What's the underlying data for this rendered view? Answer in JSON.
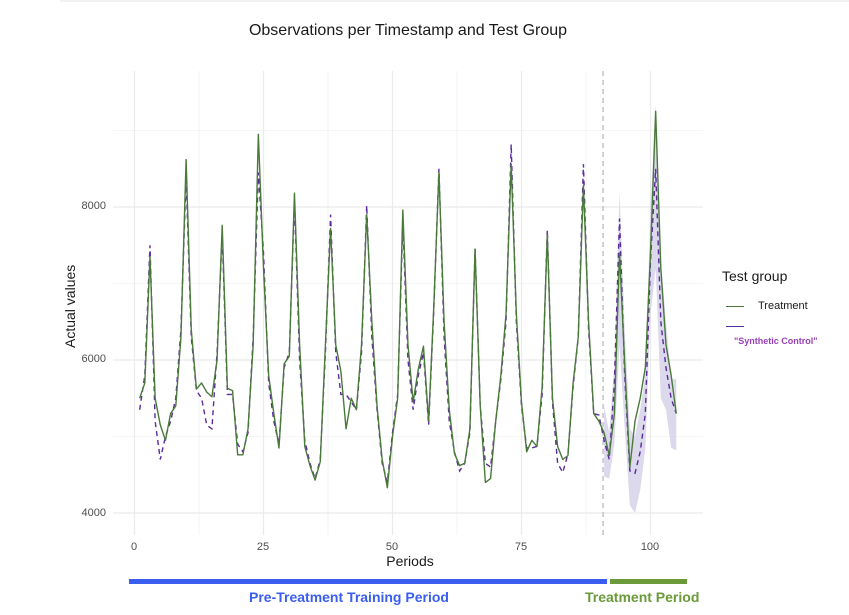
{
  "colors": {
    "treatment": "#4a7a3a",
    "synthetic_control": "#5b2a9e",
    "band": "#d8d5ea",
    "grid": "#ebebeb",
    "vline": "#b5b5b5",
    "pre_period": "#3a5ef0",
    "treatment_period": "#6a9a3a",
    "legend_sc_label": "#9a3fb8"
  },
  "chart_data": {
    "type": "line",
    "title": "Observations per Timestamp and Test Group",
    "xlabel": "Periods",
    "ylabel": "Actual values",
    "xlim": [
      -4,
      110
    ],
    "ylim": [
      3700,
      9750
    ],
    "xticks": [
      0,
      25,
      50,
      75,
      100
    ],
    "yticks": [
      4000,
      6000,
      8000
    ],
    "grid": true,
    "treatment_start": 91,
    "legend": {
      "title": "Test group",
      "position": "right",
      "entries": [
        "Treatment",
        "\"Synthetic Control\""
      ]
    },
    "x": [
      1,
      2,
      3,
      4,
      5,
      6,
      7,
      8,
      9,
      10,
      11,
      12,
      13,
      14,
      15,
      16,
      17,
      18,
      19,
      20,
      21,
      22,
      23,
      24,
      25,
      26,
      27,
      28,
      29,
      30,
      31,
      32,
      33,
      34,
      35,
      36,
      37,
      38,
      39,
      40,
      41,
      42,
      43,
      44,
      45,
      46,
      47,
      48,
      49,
      50,
      51,
      52,
      53,
      54,
      55,
      56,
      57,
      58,
      59,
      60,
      61,
      62,
      63,
      64,
      65,
      66,
      67,
      68,
      69,
      70,
      71,
      72,
      73,
      74,
      75,
      76,
      77,
      78,
      79,
      80,
      81,
      82,
      83,
      84,
      85,
      86,
      87,
      88,
      89,
      90,
      91,
      92,
      93,
      94,
      95,
      96,
      97,
      98,
      99,
      100,
      101,
      102,
      103,
      104,
      105
    ],
    "series": [
      {
        "name": "Treatment",
        "style": "solid",
        "values": [
          5500,
          5700,
          7350,
          5500,
          5150,
          4950,
          5300,
          5400,
          6300,
          8620,
          6400,
          5620,
          5700,
          5580,
          5520,
          6000,
          7760,
          5630,
          5600,
          4760,
          4760,
          5100,
          6200,
          8950,
          7200,
          5800,
          5300,
          4850,
          5950,
          6050,
          8180,
          6200,
          4870,
          4620,
          4430,
          4670,
          6200,
          7720,
          6200,
          5850,
          5100,
          5500,
          5350,
          6200,
          7900,
          6500,
          5400,
          4700,
          4330,
          5000,
          5500,
          7960,
          6200,
          5450,
          5880,
          6180,
          5200,
          6700,
          8450,
          6500,
          5350,
          4780,
          4620,
          4650,
          5100,
          7450,
          5400,
          4400,
          4450,
          5200,
          5800,
          6600,
          8560,
          6600,
          5450,
          4800,
          4950,
          4870,
          5650,
          7640,
          5500,
          4870,
          4700,
          4750,
          5700,
          6300,
          8280,
          6500,
          5300,
          5200,
          5050,
          4750,
          5300,
          7400,
          5950,
          4600,
          5200,
          5500,
          5900,
          7400,
          9250,
          7200,
          6200,
          5800,
          5300
        ]
      },
      {
        "name": "\"Synthetic Control\"",
        "style": "dashed",
        "values": [
          5350,
          5800,
          7500,
          5200,
          4700,
          5000,
          5200,
          5500,
          6400,
          8400,
          6300,
          5600,
          5500,
          5150,
          5100,
          6100,
          7650,
          5550,
          5550,
          4900,
          4800,
          5050,
          6300,
          8450,
          7400,
          5700,
          5200,
          4900,
          5900,
          6100,
          8080,
          6000,
          4950,
          4650,
          4450,
          4700,
          6100,
          7900,
          6100,
          5550,
          5550,
          5450,
          5350,
          6100,
          8020,
          6300,
          5350,
          4650,
          4400,
          5050,
          5550,
          7800,
          6000,
          5350,
          5800,
          6100,
          5150,
          6650,
          8500,
          6300,
          5200,
          4800,
          4550,
          4650,
          5050,
          7450,
          5400,
          4650,
          4600,
          5200,
          5750,
          6500,
          8820,
          6500,
          5400,
          4850,
          4850,
          4870,
          5550,
          7700,
          5450,
          4650,
          4530,
          4770,
          5650,
          6300,
          8560,
          6400,
          5300,
          5280,
          4950,
          4700,
          5700,
          7850,
          5800,
          4550,
          4520,
          4800,
          5300,
          7300,
          8500,
          6500,
          5900,
          5500,
          5300
        ]
      },
      {
        "name": "Synthetic Control interval",
        "style": "band",
        "x": [
          91,
          92,
          93,
          94,
          95,
          96,
          97,
          98,
          99,
          100,
          101,
          102,
          103,
          104,
          105
        ],
        "lower": [
          4480,
          4450,
          4900,
          6200,
          5100,
          4100,
          4000,
          4300,
          4850,
          6600,
          7200,
          5500,
          5350,
          4850,
          4820
        ],
        "upper": [
          5400,
          5050,
          5950,
          8200,
          6400,
          5100,
          5000,
          5350,
          5800,
          8000,
          9350,
          7300,
          6500,
          5750,
          5750
        ]
      }
    ]
  },
  "annotations": {
    "pre_period_label": "Pre-Treatment Training Period",
    "treatment_period_label": "Treatment Period"
  },
  "axis_text": {
    "ytick_8000": "8000",
    "ytick_6000": "6000",
    "ytick_4000": "4000",
    "xtick_0": "0",
    "xtick_25": "25",
    "xtick_50": "50",
    "xtick_75": "75",
    "xtick_100": "100"
  }
}
